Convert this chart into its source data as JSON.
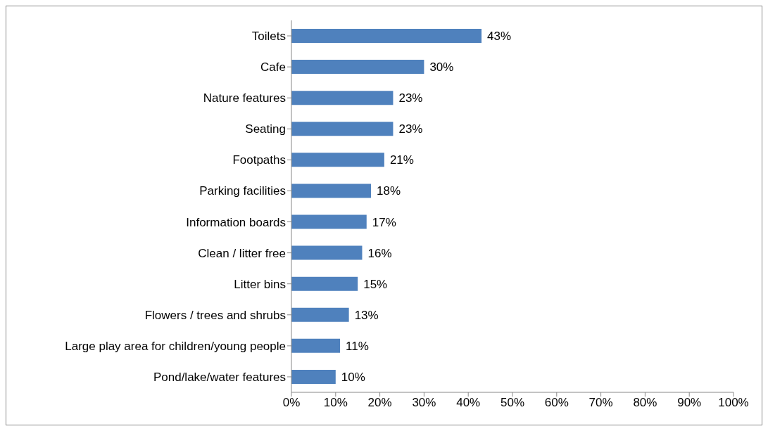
{
  "chart_data": {
    "type": "bar",
    "orientation": "horizontal",
    "categories": [
      "Toilets",
      "Cafe",
      "Nature features",
      "Seating",
      "Footpaths",
      "Parking facilities",
      "Information boards",
      "Clean / litter free",
      "Litter bins",
      "Flowers / trees and shrubs",
      "Large play area for children/young people",
      "Pond/lake/water features"
    ],
    "values": [
      43,
      30,
      23,
      23,
      21,
      18,
      17,
      16,
      15,
      13,
      11,
      10
    ],
    "value_labels": [
      "43%",
      "30%",
      "23%",
      "23%",
      "21%",
      "18%",
      "17%",
      "16%",
      "15%",
      "13%",
      "11%",
      "10%"
    ],
    "color": "#4f81bd",
    "xlim": [
      0,
      100
    ],
    "xticks": [
      {
        "value": 0,
        "label": "0%"
      },
      {
        "value": 10,
        "label": "10%"
      },
      {
        "value": 20,
        "label": "20%"
      },
      {
        "value": 30,
        "label": "30%"
      },
      {
        "value": 40,
        "label": "40%"
      },
      {
        "value": 50,
        "label": "50%"
      },
      {
        "value": 60,
        "label": "60%"
      },
      {
        "value": 70,
        "label": "70%"
      },
      {
        "value": 80,
        "label": "80%"
      },
      {
        "value": 90,
        "label": "90%"
      },
      {
        "value": 100,
        "label": "100%"
      }
    ],
    "grid": false,
    "legend": false
  }
}
